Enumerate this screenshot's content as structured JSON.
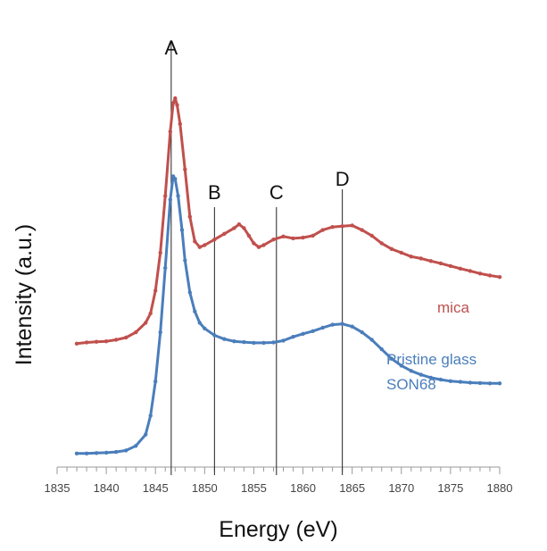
{
  "chart_data": {
    "type": "line",
    "title": "",
    "xlabel": "Energy (eV)",
    "ylabel": "Intensity (a.u.)",
    "xlim": [
      1835,
      1880
    ],
    "x_ticks": [
      1835,
      1840,
      1845,
      1850,
      1855,
      1860,
      1865,
      1870,
      1875,
      1880
    ],
    "y_ticks_shown": false,
    "grid": false,
    "legend": "inline labels at right of curves",
    "vertical_markers": [
      {
        "label": "A",
        "x": 1846.6
      },
      {
        "label": "B",
        "x": 1851.0
      },
      {
        "label": "C",
        "x": 1857.3
      },
      {
        "label": "D",
        "x": 1864.0
      }
    ],
    "series": [
      {
        "name": "mica",
        "color": "#c0504d",
        "points": [
          [
            1837.0,
            0.3
          ],
          [
            1838.0,
            0.303
          ],
          [
            1839.0,
            0.305
          ],
          [
            1840.0,
            0.306
          ],
          [
            1841.0,
            0.31
          ],
          [
            1842.0,
            0.316
          ],
          [
            1843.0,
            0.33
          ],
          [
            1844.0,
            0.355
          ],
          [
            1844.5,
            0.38
          ],
          [
            1845.0,
            0.44
          ],
          [
            1845.5,
            0.54
          ],
          [
            1846.0,
            0.69
          ],
          [
            1846.5,
            0.86
          ],
          [
            1846.8,
            0.935
          ],
          [
            1847.0,
            0.948
          ],
          [
            1847.2,
            0.93
          ],
          [
            1847.5,
            0.88
          ],
          [
            1848.0,
            0.76
          ],
          [
            1848.5,
            0.635
          ],
          [
            1849.0,
            0.57
          ],
          [
            1849.5,
            0.555
          ],
          [
            1850.0,
            0.56
          ],
          [
            1851.0,
            0.575
          ],
          [
            1852.0,
            0.59
          ],
          [
            1853.0,
            0.605
          ],
          [
            1853.5,
            0.615
          ],
          [
            1854.0,
            0.605
          ],
          [
            1854.5,
            0.585
          ],
          [
            1855.0,
            0.565
          ],
          [
            1855.5,
            0.555
          ],
          [
            1856.0,
            0.56
          ],
          [
            1857.0,
            0.575
          ],
          [
            1858.0,
            0.583
          ],
          [
            1859.0,
            0.578
          ],
          [
            1860.0,
            0.58
          ],
          [
            1861.0,
            0.585
          ],
          [
            1862.0,
            0.6
          ],
          [
            1863.0,
            0.608
          ],
          [
            1864.0,
            0.61
          ],
          [
            1865.0,
            0.612
          ],
          [
            1866.0,
            0.6
          ],
          [
            1867.0,
            0.585
          ],
          [
            1868.0,
            0.565
          ],
          [
            1869.0,
            0.55
          ],
          [
            1870.0,
            0.54
          ],
          [
            1871.0,
            0.53
          ],
          [
            1872.0,
            0.525
          ],
          [
            1873.0,
            0.518
          ],
          [
            1874.0,
            0.512
          ],
          [
            1875.0,
            0.505
          ],
          [
            1876.0,
            0.498
          ],
          [
            1877.0,
            0.492
          ],
          [
            1878.0,
            0.485
          ],
          [
            1879.0,
            0.48
          ],
          [
            1880.0,
            0.476
          ]
        ]
      },
      {
        "name": "Pristine glass SON68",
        "color": "#4a7ebb",
        "points": [
          [
            1837.0,
            0.01
          ],
          [
            1838.0,
            0.01
          ],
          [
            1839.0,
            0.011
          ],
          [
            1840.0,
            0.012
          ],
          [
            1841.0,
            0.014
          ],
          [
            1842.0,
            0.018
          ],
          [
            1843.0,
            0.03
          ],
          [
            1844.0,
            0.06
          ],
          [
            1844.5,
            0.11
          ],
          [
            1845.0,
            0.2
          ],
          [
            1845.5,
            0.33
          ],
          [
            1846.0,
            0.5
          ],
          [
            1846.5,
            0.68
          ],
          [
            1846.8,
            0.742
          ],
          [
            1847.0,
            0.735
          ],
          [
            1847.3,
            0.69
          ],
          [
            1847.7,
            0.6
          ],
          [
            1848.0,
            0.52
          ],
          [
            1848.5,
            0.435
          ],
          [
            1849.0,
            0.385
          ],
          [
            1849.5,
            0.355
          ],
          [
            1850.0,
            0.34
          ],
          [
            1851.0,
            0.322
          ],
          [
            1852.0,
            0.312
          ],
          [
            1853.0,
            0.306
          ],
          [
            1854.0,
            0.304
          ],
          [
            1855.0,
            0.302
          ],
          [
            1856.0,
            0.302
          ],
          [
            1857.0,
            0.303
          ],
          [
            1858.0,
            0.308
          ],
          [
            1859.0,
            0.318
          ],
          [
            1860.0,
            0.326
          ],
          [
            1861.0,
            0.333
          ],
          [
            1862.0,
            0.342
          ],
          [
            1863.0,
            0.35
          ],
          [
            1864.0,
            0.352
          ],
          [
            1865.0,
            0.345
          ],
          [
            1866.0,
            0.33
          ],
          [
            1867.0,
            0.31
          ],
          [
            1868.0,
            0.285
          ],
          [
            1869.0,
            0.26
          ],
          [
            1870.0,
            0.242
          ],
          [
            1871.0,
            0.228
          ],
          [
            1872.0,
            0.218
          ],
          [
            1873.0,
            0.21
          ],
          [
            1874.0,
            0.205
          ],
          [
            1875.0,
            0.201
          ],
          [
            1876.0,
            0.199
          ],
          [
            1877.0,
            0.197
          ],
          [
            1878.0,
            0.196
          ],
          [
            1879.0,
            0.195
          ],
          [
            1880.0,
            0.195
          ]
        ]
      }
    ]
  },
  "labels": {
    "mica": "mica",
    "pristine_line1": "Pristine glass",
    "pristine_line2": "SON68"
  }
}
